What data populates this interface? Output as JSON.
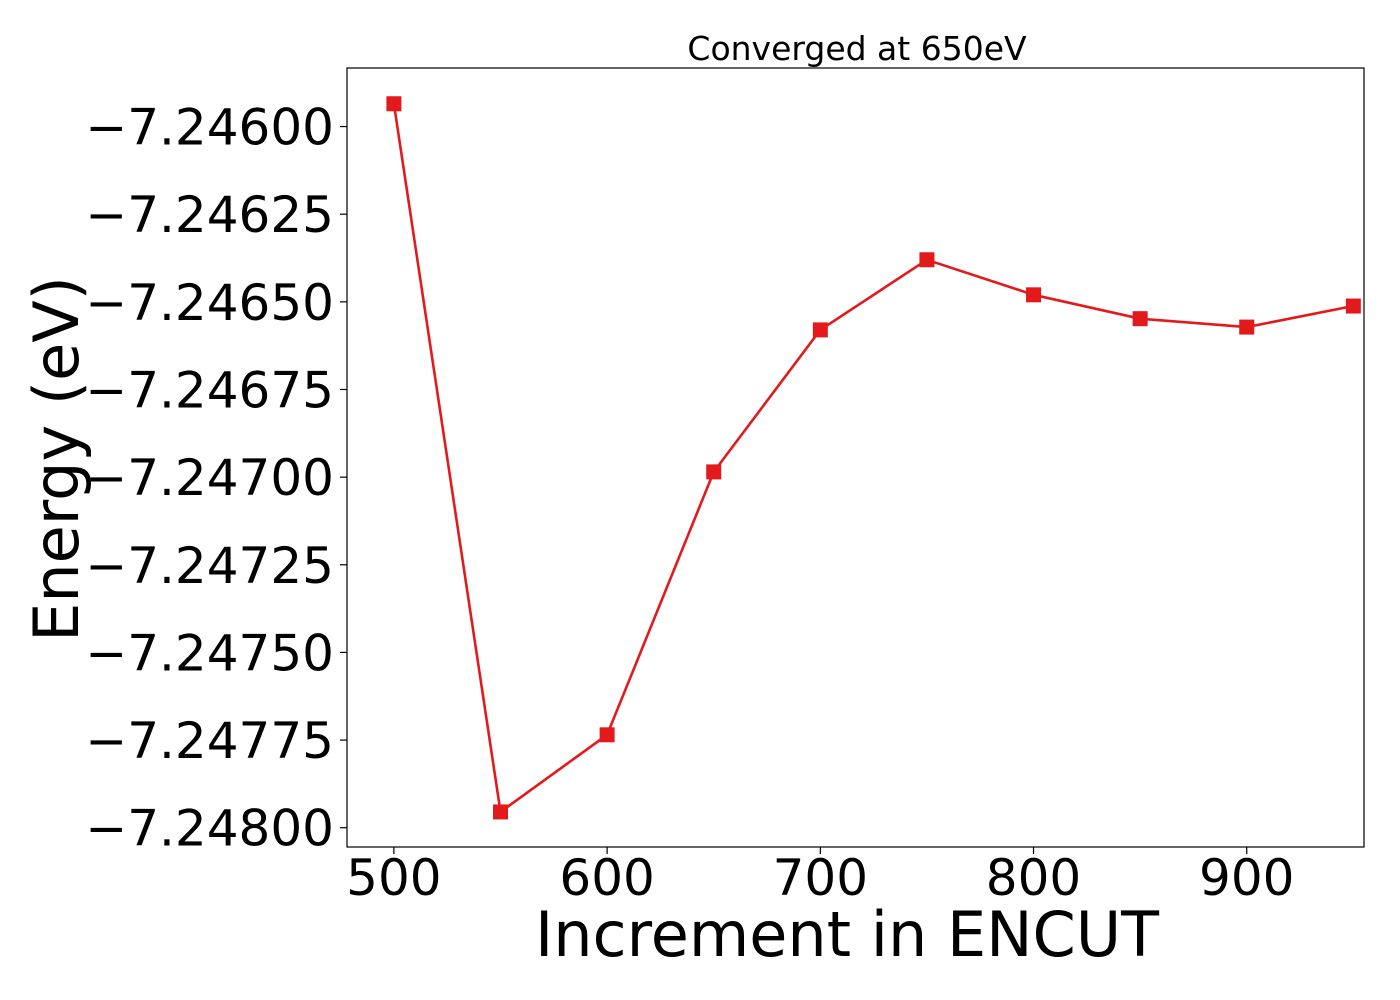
{
  "chart_data": {
    "type": "line",
    "title": "Converged at 650eV",
    "xlabel": "Increment in ENCUT",
    "ylabel": "Energy (eV)",
    "x": [
      500,
      550,
      600,
      650,
      700,
      750,
      800,
      850,
      900,
      950
    ],
    "series": [
      {
        "values": [
          -7.245935,
          -7.247955,
          -7.247735,
          -7.246985,
          -7.24658,
          -7.24638,
          -7.24648,
          -7.246548,
          -7.246572,
          -7.246512
        ],
        "color": "#e31a1c",
        "marker": "square"
      }
    ],
    "xlim": [
      478,
      955
    ],
    "ylim": [
      -7.248055,
      -7.245833
    ],
    "xticks": [
      500,
      600,
      700,
      800,
      900
    ],
    "xtick_labels": [
      "500",
      "600",
      "700",
      "800",
      "900"
    ],
    "yticks": [
      -7.246,
      -7.24625,
      -7.2465,
      -7.24675,
      -7.247,
      -7.24725,
      -7.2475,
      -7.24775,
      -7.248
    ],
    "ytick_labels": [
      "−7.24600",
      "−7.24625",
      "−7.24650",
      "−7.24675",
      "−7.24700",
      "−7.24725",
      "−7.24750",
      "−7.24775",
      "−7.24800"
    ],
    "grid": false,
    "legend": "none"
  }
}
